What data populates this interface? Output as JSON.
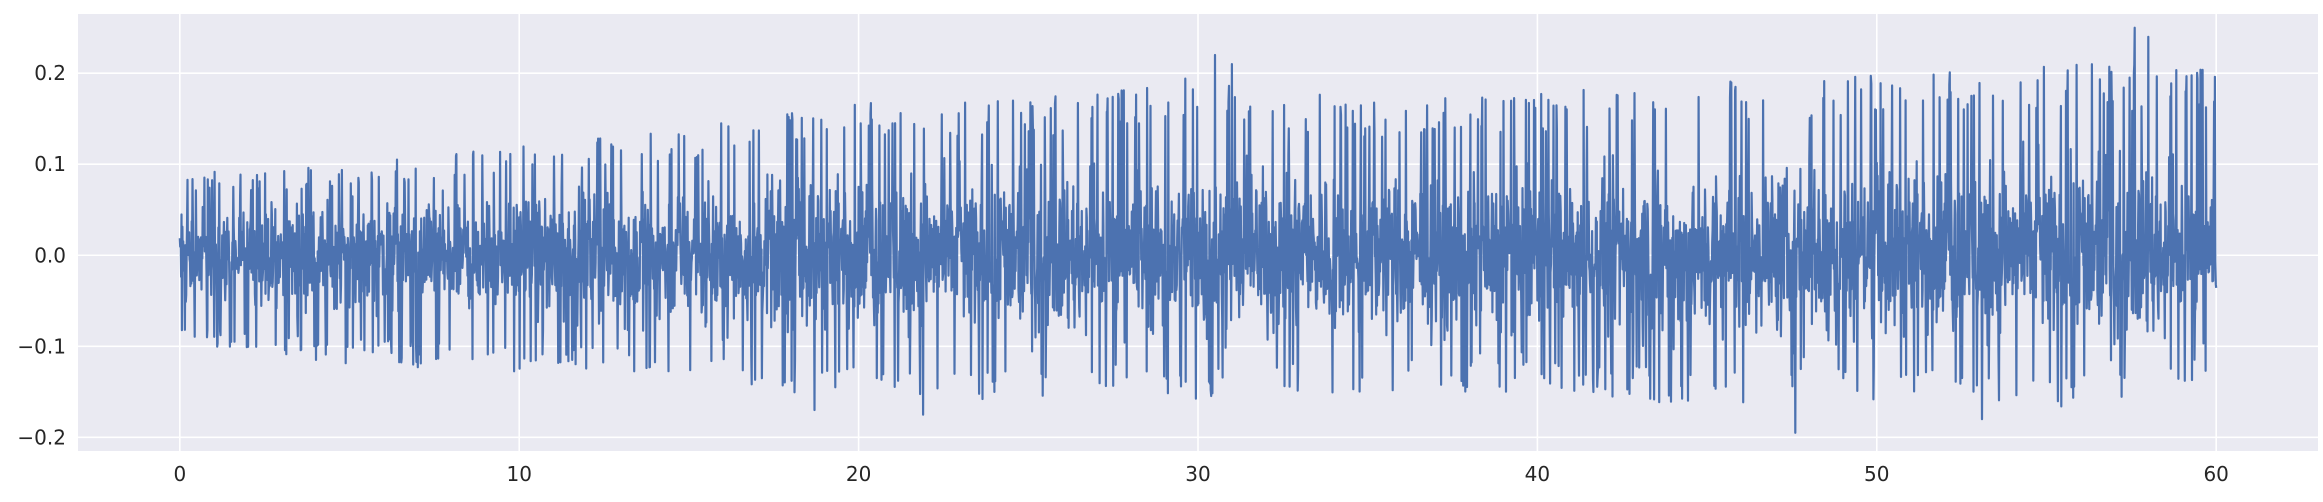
{
  "chart_data": {
    "type": "line",
    "title": "",
    "xlabel": "",
    "ylabel": "",
    "xlim": [
      -3,
      63
    ],
    "ylim": [
      -0.215,
      0.265
    ],
    "x_ticks": [
      0,
      10,
      20,
      30,
      40,
      50,
      60
    ],
    "x_tick_labels": [
      "0",
      "10",
      "20",
      "30",
      "40",
      "50",
      "60"
    ],
    "y_ticks": [
      -0.2,
      -0.1,
      0.0,
      0.1,
      0.2
    ],
    "y_tick_labels": [
      "−0.2",
      "−0.1",
      "0.0",
      "0.1",
      "0.2"
    ],
    "grid": true,
    "legend": "none",
    "background_color": "#EAEAF2",
    "series": [
      {
        "color": "#4C72B0",
        "x_range": [
          0,
          60
        ],
        "envelope": {
          "x": [
            0,
            5,
            10,
            15,
            20,
            25,
            30,
            35,
            40,
            45,
            50,
            55,
            60
          ],
          "upper": [
            0.09,
            0.1,
            0.12,
            0.14,
            0.17,
            0.17,
            0.2,
            0.17,
            0.18,
            0.19,
            0.2,
            0.21,
            0.21
          ],
          "lower": [
            -0.1,
            -0.12,
            -0.13,
            -0.14,
            -0.16,
            -0.16,
            -0.16,
            -0.15,
            -0.15,
            -0.17,
            -0.16,
            -0.17,
            -0.15
          ]
        },
        "peaks": [
          {
            "x": 30.5,
            "y": 0.22
          },
          {
            "x": 31.0,
            "y": 0.21
          },
          {
            "x": 57.6,
            "y": 0.25
          },
          {
            "x": 58.0,
            "y": 0.24
          },
          {
            "x": 47.6,
            "y": -0.195
          },
          {
            "x": 53.1,
            "y": -0.18
          },
          {
            "x": 21.9,
            "y": -0.175
          },
          {
            "x": 18.7,
            "y": -0.17
          }
        ]
      }
    ]
  }
}
